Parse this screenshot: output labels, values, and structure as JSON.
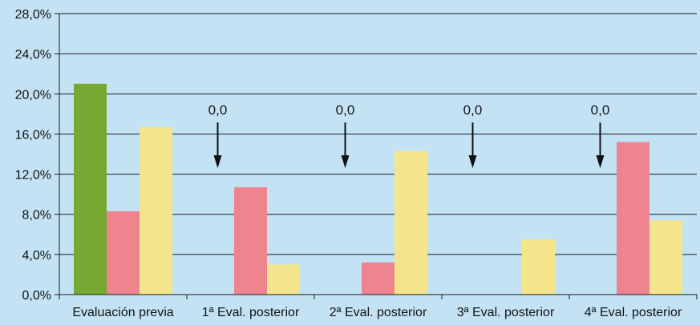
{
  "chart_data": {
    "type": "bar",
    "categories": [
      "Evaluación previa",
      "1ª Eval. posterior",
      "2ª Eval. posterior",
      "3ª Eval. posterior",
      "4ª Eval. posterior"
    ],
    "series": [
      {
        "color": "#76a832",
        "values": [
          21.0,
          0.0,
          0.0,
          0.0,
          0.0
        ]
      },
      {
        "color": "#ee848e",
        "values": [
          8.3,
          10.7,
          3.2,
          0.0,
          15.2
        ]
      },
      {
        "color": "#f4e58c",
        "values": [
          16.7,
          3.0,
          14.3,
          5.5,
          7.4
        ]
      }
    ],
    "ylim": [
      0,
      28
    ],
    "y_ticks": [
      "0,0%",
      "4,0%",
      "8,0%",
      "12,0%",
      "16,0%",
      "20,0%",
      "24,0%",
      "28,0%"
    ],
    "grid": true,
    "background": "#c3e3f5",
    "annotations": [
      {
        "category_index": 1,
        "text": "0,0"
      },
      {
        "category_index": 2,
        "text": "0,0"
      },
      {
        "category_index": 3,
        "text": "0,0"
      },
      {
        "category_index": 4,
        "text": "0,0"
      }
    ]
  }
}
